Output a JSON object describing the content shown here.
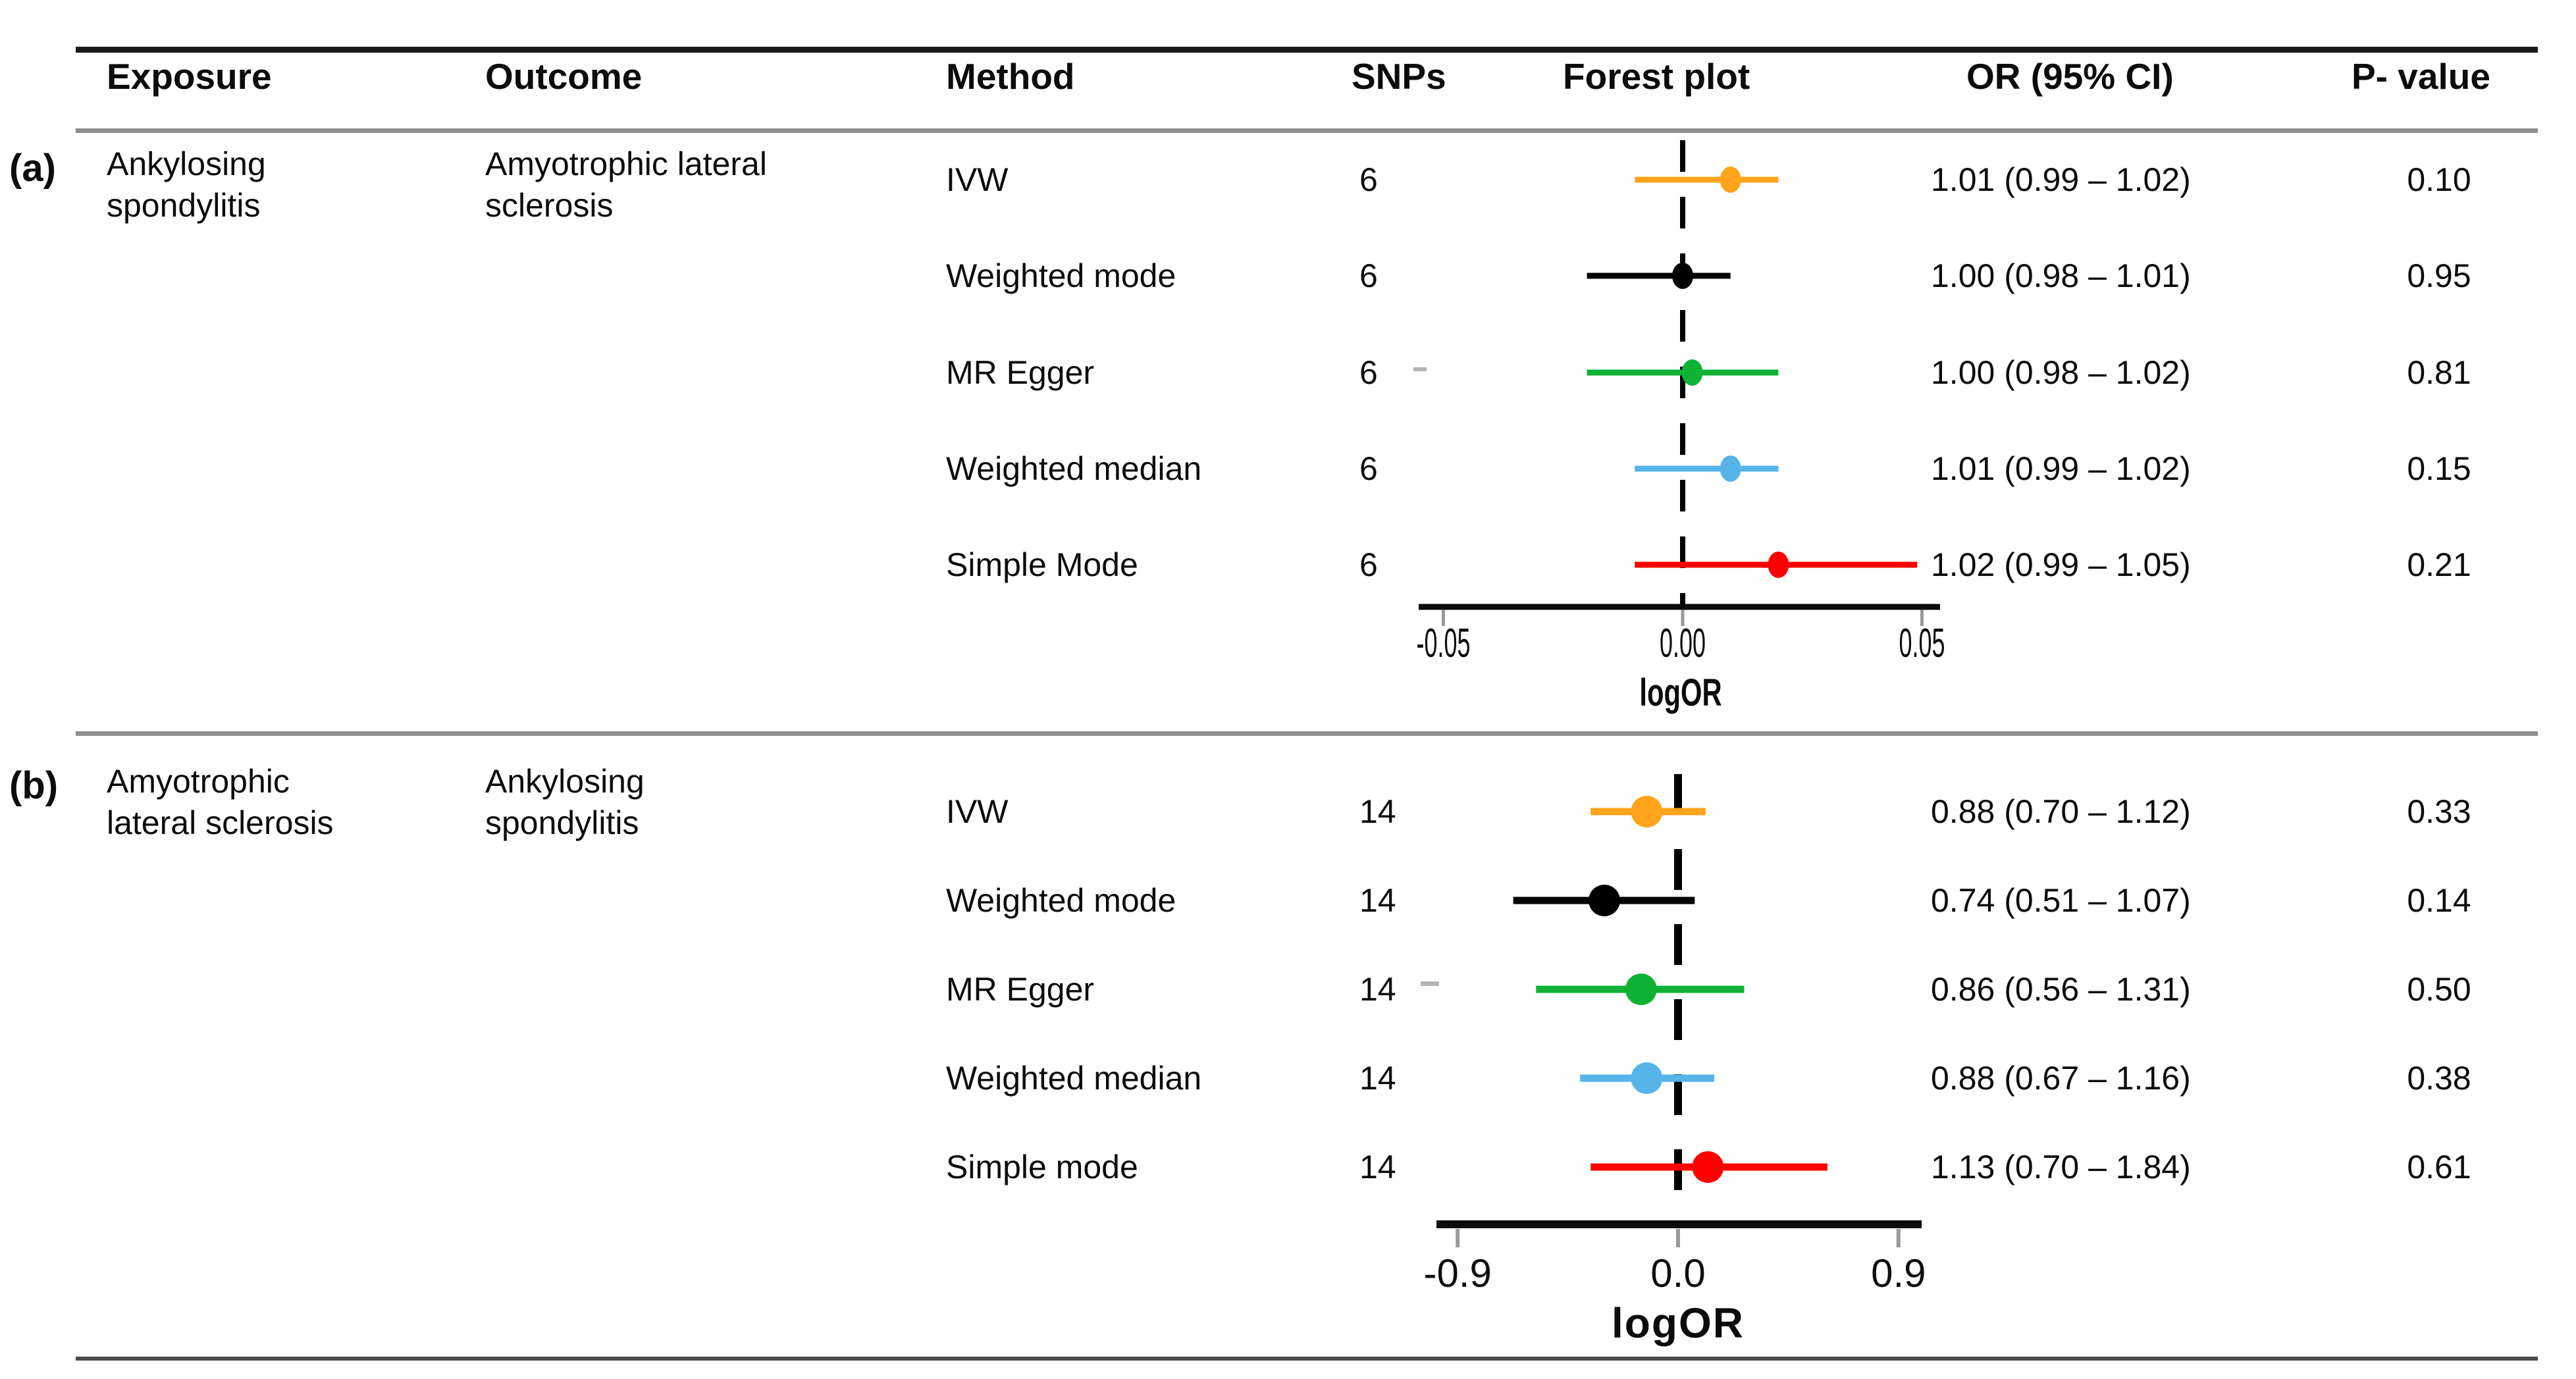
{
  "table": {
    "headers": [
      "Exposure",
      "Outcome",
      "Method",
      "SNPs",
      "Forest plot",
      "OR (95% CI)",
      "P- value"
    ]
  },
  "panels": [
    {
      "label": "(a)",
      "exposure_lines": [
        "Ankylosing",
        "spondylitis"
      ],
      "outcome_lines": [
        "Amyotrophic lateral",
        "sclerosis"
      ]
    },
    {
      "label": "(b)",
      "exposure_lines": [
        "Amyotrophic",
        "lateral sclerosis"
      ],
      "outcome_lines": [
        "Ankylosing",
        "spondylitis"
      ]
    }
  ],
  "palette": {
    "ivw": "#FFA41B",
    "weighted_mode": "#000000",
    "mr_egger": "#10B236",
    "weighted_median": "#56B4E9",
    "simple_mode": "#FF0000"
  },
  "chart_data": [
    {
      "type": "scatter",
      "variant": "forest-plot",
      "panel": "(a)",
      "exposure": "Ankylosing spondylitis",
      "outcome": "Amyotrophic lateral sclerosis",
      "xlabel": "logOR",
      "xlim": [
        -0.057,
        0.054
      ],
      "xticks": [
        -0.05,
        0,
        0.05
      ],
      "xtick_labels": [
        "-0.05",
        "0.00",
        "0.05"
      ],
      "zero_line": 0,
      "grid": false,
      "legend": "none",
      "series": [
        {
          "method": "IVW",
          "snps": "6",
          "logor": 0.01,
          "ci_low": -0.01,
          "ci_high": 0.02,
          "or_ci": "1.01 (0.99 – 1.02)",
          "p_value": "0.10",
          "color": "#FFA41B"
        },
        {
          "method": "Weighted mode",
          "snps": "6",
          "logor": 0.0,
          "ci_low": -0.02,
          "ci_high": 0.01,
          "or_ci": "1.00 (0.98 – 1.01)",
          "p_value": "0.95",
          "color": "#000000"
        },
        {
          "method": "MR Egger",
          "snps": "6",
          "logor": 0.002,
          "ci_low": -0.02,
          "ci_high": 0.02,
          "or_ci": "1.00 (0.98 – 1.02)",
          "p_value": "0.81",
          "color": "#10B236"
        },
        {
          "method": "Weighted median",
          "snps": "6",
          "logor": 0.01,
          "ci_low": -0.01,
          "ci_high": 0.02,
          "or_ci": "1.01 (0.99 – 1.02)",
          "p_value": "0.15",
          "color": "#56B4E9"
        },
        {
          "method": "Simple Mode",
          "snps": "6",
          "logor": 0.02,
          "ci_low": -0.01,
          "ci_high": 0.049,
          "or_ci": "1.02 (0.99 – 1.05)",
          "p_value": "0.21",
          "color": "#FF0000"
        }
      ]
    },
    {
      "type": "scatter",
      "variant": "forest-plot",
      "panel": "(b)",
      "exposure": "Amyotrophic lateral sclerosis",
      "outcome": "Ankylosing spondylitis",
      "xlabel": "logOR",
      "xlim": [
        -1.0,
        1.0
      ],
      "xticks": [
        -0.9,
        0,
        0.9
      ],
      "xtick_labels": [
        "-0.9",
        "0.0",
        "0.9"
      ],
      "zero_line": 0,
      "grid": false,
      "legend": "none",
      "series": [
        {
          "method": "IVW",
          "snps": "14",
          "logor": -0.128,
          "ci_low": -0.357,
          "ci_high": 0.113,
          "or_ci": "0.88 (0.70 – 1.12)",
          "p_value": "0.33",
          "color": "#FFA41B"
        },
        {
          "method": "Weighted mode",
          "snps": "14",
          "logor": -0.301,
          "ci_low": -0.673,
          "ci_high": 0.068,
          "or_ci": "0.74 (0.51 – 1.07)",
          "p_value": "0.14",
          "color": "#000000"
        },
        {
          "method": "MR Egger",
          "snps": "14",
          "logor": -0.151,
          "ci_low": -0.58,
          "ci_high": 0.27,
          "or_ci": "0.86 (0.56 – 1.31)",
          "p_value": "0.50",
          "color": "#10B236"
        },
        {
          "method": "Weighted median",
          "snps": "14",
          "logor": -0.128,
          "ci_low": -0.4,
          "ci_high": 0.148,
          "or_ci": "0.88 (0.67 – 1.16)",
          "p_value": "0.38",
          "color": "#56B4E9"
        },
        {
          "method": "Simple mode",
          "snps": "14",
          "logor": 0.122,
          "ci_low": -0.357,
          "ci_high": 0.61,
          "or_ci": "1.13 (0.70 – 1.84)",
          "p_value": "0.61",
          "color": "#FF0000"
        }
      ]
    }
  ]
}
